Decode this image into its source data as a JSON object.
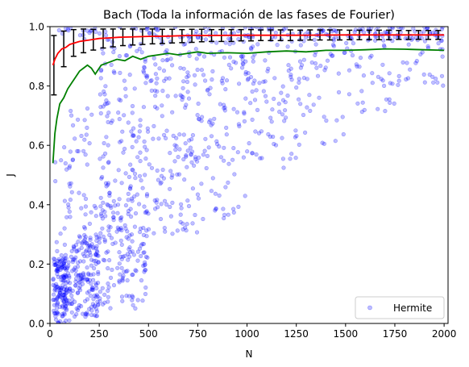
{
  "chart_data": {
    "type": "scatter",
    "title": "Bach (Toda la información de las fases de Fourier)",
    "xlabel": "N",
    "ylabel": "J",
    "xlim": [
      0,
      2020
    ],
    "ylim": [
      0,
      1.0
    ],
    "xticks": [
      0,
      250,
      500,
      750,
      1000,
      1250,
      1500,
      1750,
      2000
    ],
    "xtick_labels": [
      "0",
      "250",
      "500",
      "750",
      "1000",
      "1250",
      "1500",
      "1750",
      "2000"
    ],
    "yticks": [
      0.0,
      0.2,
      0.4,
      0.6,
      0.8,
      1.0
    ],
    "ytick_labels": [
      "0.0",
      "0.2",
      "0.4",
      "0.6",
      "0.8",
      "1.0"
    ],
    "grid": false,
    "legend": {
      "position": "bottom-right",
      "entries": [
        "Hermite"
      ]
    },
    "colors": {
      "scatter": "#0000ff",
      "mean": "#ff0000",
      "errorbar": "#000000",
      "median": "#008000"
    },
    "series": [
      {
        "name": "Hermite",
        "kind": "scatter",
        "note_points": "scatter cloud summarized as density bands: for N in [x0,x1], J spread over [ylo,yhi]",
        "bands": [
          {
            "x": [
              15,
              100
            ],
            "y": [
              0.0,
              0.22
            ],
            "count": 160
          },
          {
            "x": [
              25,
              100
            ],
            "y": [
              0.2,
              0.6
            ],
            "count": 20
          },
          {
            "x": [
              100,
              250
            ],
            "y": [
              0.02,
              0.3
            ],
            "count": 170
          },
          {
            "x": [
              100,
              250
            ],
            "y": [
              0.3,
              0.75
            ],
            "count": 40
          },
          {
            "x": [
              250,
              500
            ],
            "y": [
              0.05,
              0.45
            ],
            "count": 170
          },
          {
            "x": [
              250,
              500
            ],
            "y": [
              0.45,
              0.95
            ],
            "count": 120
          },
          {
            "x": [
              500,
              750
            ],
            "y": [
              0.3,
              0.97
            ],
            "count": 150
          },
          {
            "x": [
              750,
              1000
            ],
            "y": [
              0.35,
              0.98
            ],
            "count": 110
          },
          {
            "x": [
              1000,
              1250
            ],
            "y": [
              0.5,
              0.99
            ],
            "count": 80
          },
          {
            "x": [
              1250,
              1500
            ],
            "y": [
              0.6,
              0.99
            ],
            "count": 60
          },
          {
            "x": [
              1500,
              1750
            ],
            "y": [
              0.7,
              1.0
            ],
            "count": 50
          },
          {
            "x": [
              1750,
              2000
            ],
            "y": [
              0.8,
              1.0
            ],
            "count": 40
          },
          {
            "x": [
              30,
              2000
            ],
            "y": [
              0.95,
              1.0
            ],
            "count": 160
          }
        ]
      },
      {
        "kind": "line",
        "x": [
          15,
          25,
          40,
          60,
          80,
          100,
          150,
          200,
          250,
          300,
          350,
          400,
          500,
          600,
          700,
          800,
          1000,
          1250,
          1500,
          1750,
          2000
        ],
        "y": [
          0.87,
          0.89,
          0.91,
          0.925,
          0.93,
          0.94,
          0.95,
          0.955,
          0.96,
          0.962,
          0.964,
          0.965,
          0.967,
          0.968,
          0.97,
          0.97,
          0.971,
          0.971,
          0.972,
          0.972,
          0.972
        ]
      },
      {
        "kind": "errorbar",
        "x": [
          20,
          70,
          120,
          170,
          220,
          270,
          320,
          370,
          420,
          470,
          520,
          570,
          620,
          670,
          720,
          770,
          820,
          870,
          920,
          970,
          1020,
          1070,
          1120,
          1170,
          1220,
          1270,
          1320,
          1370,
          1420,
          1470,
          1520,
          1570,
          1620,
          1670,
          1720,
          1770,
          1820,
          1870,
          1920,
          1970
        ],
        "mean": [
          0.87,
          0.925,
          0.945,
          0.952,
          0.956,
          0.96,
          0.962,
          0.964,
          0.965,
          0.966,
          0.967,
          0.967,
          0.968,
          0.968,
          0.969,
          0.97,
          0.97,
          0.97,
          0.97,
          0.971,
          0.971,
          0.971,
          0.971,
          0.971,
          0.971,
          0.971,
          0.972,
          0.972,
          0.972,
          0.972,
          0.972,
          0.972,
          0.972,
          0.972,
          0.972,
          0.972,
          0.972,
          0.972,
          0.972,
          0.972
        ],
        "err": [
          0.1,
          0.06,
          0.045,
          0.04,
          0.035,
          0.032,
          0.03,
          0.028,
          0.027,
          0.026,
          0.025,
          0.024,
          0.023,
          0.022,
          0.022,
          0.021,
          0.02,
          0.02,
          0.02,
          0.019,
          0.019,
          0.018,
          0.018,
          0.018,
          0.018,
          0.017,
          0.017,
          0.017,
          0.017,
          0.017,
          0.016,
          0.016,
          0.016,
          0.016,
          0.016,
          0.015,
          0.015,
          0.015,
          0.015,
          0.015
        ]
      },
      {
        "kind": "line",
        "x": [
          15,
          25,
          35,
          50,
          70,
          90,
          110,
          130,
          150,
          170,
          190,
          210,
          230,
          260,
          300,
          340,
          380,
          420,
          460,
          500,
          550,
          600,
          650,
          700,
          750,
          800,
          900,
          1000,
          1100,
          1200,
          1300,
          1400,
          1500,
          1600,
          1700,
          1800,
          1900,
          2000
        ],
        "y": [
          0.54,
          0.64,
          0.69,
          0.74,
          0.76,
          0.79,
          0.81,
          0.83,
          0.85,
          0.86,
          0.87,
          0.86,
          0.84,
          0.87,
          0.88,
          0.89,
          0.885,
          0.9,
          0.89,
          0.9,
          0.905,
          0.91,
          0.905,
          0.91,
          0.915,
          0.91,
          0.912,
          0.91,
          0.915,
          0.918,
          0.915,
          0.92,
          0.92,
          0.922,
          0.925,
          0.924,
          0.922,
          0.92
        ]
      }
    ]
  }
}
